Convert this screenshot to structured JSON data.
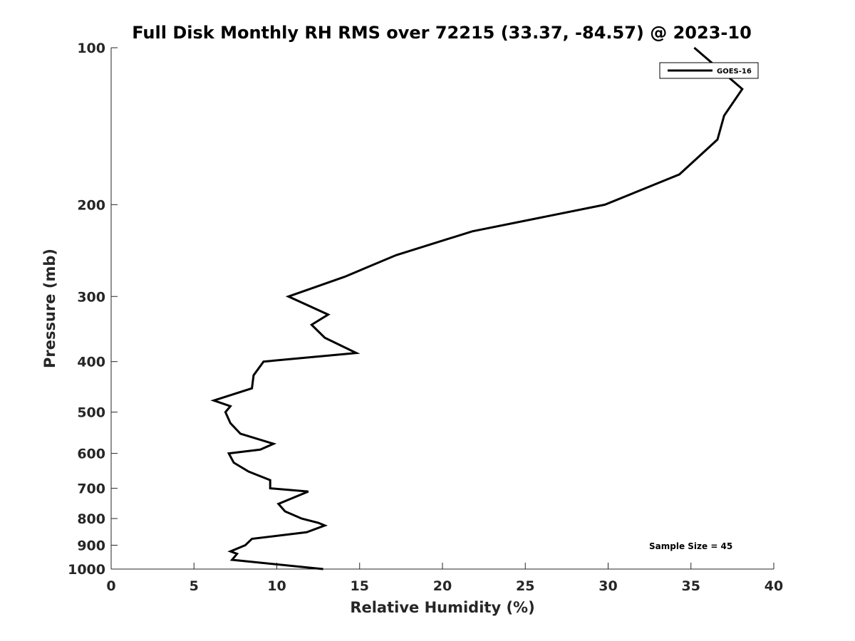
{
  "chart_data": {
    "type": "line",
    "title": "Full Disk Monthly RH RMS over 72215 (33.37, -84.57) @ 2023-10",
    "xlabel": "Relative Humidity (%)",
    "ylabel": "Pressure (mb)",
    "xlim": [
      0,
      40
    ],
    "ylim": [
      100,
      1000
    ],
    "y_scale": "log",
    "y_reversed": true,
    "x_ticks": [
      0,
      5,
      10,
      15,
      20,
      25,
      30,
      35,
      40
    ],
    "x_tick_labels": [
      "0",
      "5",
      "10",
      "15",
      "20",
      "25",
      "30",
      "35",
      "40"
    ],
    "y_ticks": [
      100,
      200,
      300,
      400,
      500,
      600,
      700,
      800,
      900,
      1000
    ],
    "y_tick_labels": [
      "100",
      "200",
      "300",
      "400",
      "500",
      "600",
      "700",
      "800",
      "900",
      "1000"
    ],
    "grid": false,
    "legend_position": "top-right",
    "annotation": "Sample Size = 45",
    "series": [
      {
        "name": "GOES-16",
        "color": "#000000",
        "x": [
          35.2,
          38.1,
          37.0,
          36.6,
          34.3,
          29.8,
          21.8,
          17.2,
          14.1,
          10.7,
          10.7,
          13.1,
          12.1,
          12.9,
          14.8,
          9.2,
          8.6,
          8.5,
          6.2,
          7.2,
          6.9,
          7.2,
          7.8,
          9.8,
          9.0,
          7.1,
          7.4,
          8.3,
          9.6,
          9.6,
          11.9,
          10.1,
          10.5,
          11.5,
          12.5,
          12.9,
          11.8,
          8.5,
          8.1,
          7.2,
          7.6,
          7.3,
          12.8
        ],
        "y": [
          100,
          120,
          135,
          150,
          175,
          200,
          225,
          250,
          275,
          300,
          300,
          325,
          340,
          360,
          385,
          400,
          425,
          450,
          475,
          487,
          500,
          525,
          550,
          575,
          590,
          600,
          625,
          650,
          675,
          700,
          710,
          750,
          775,
          800,
          815,
          825,
          850,
          875,
          900,
          925,
          935,
          960,
          1000
        ]
      }
    ]
  }
}
